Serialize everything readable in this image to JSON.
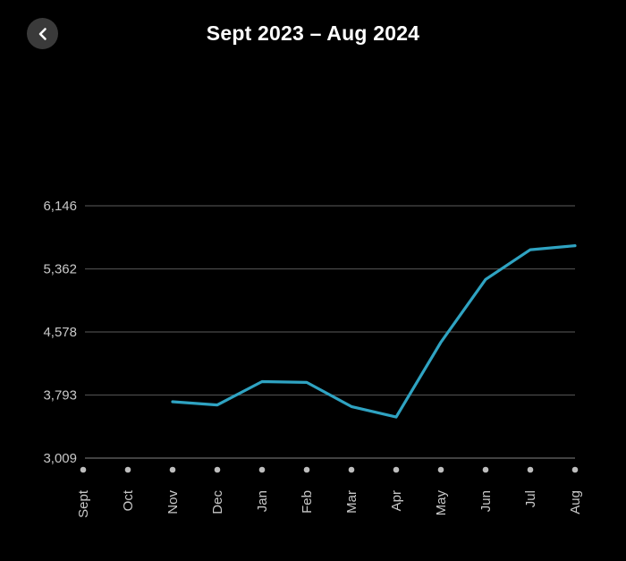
{
  "header": {
    "title": "Sept 2023 – Aug 2024",
    "back_icon": "chevron-left-icon"
  },
  "colors": {
    "background": "#000000",
    "line": "#2fa3c2",
    "grid": "#4a4a4a",
    "tick_text": "#c8c8c8",
    "dot": "#bdbdbd"
  },
  "chart_data": {
    "type": "line",
    "title": "Sept 2023 – Aug 2024",
    "xlabel": "",
    "ylabel": "",
    "categories": [
      "Sept",
      "Oct",
      "Nov",
      "Dec",
      "Jan",
      "Feb",
      "Mar",
      "Apr",
      "May",
      "Jun",
      "Jul",
      "Aug"
    ],
    "yticks": [
      "3,009",
      "3,793",
      "4,578",
      "5,362",
      "6,146"
    ],
    "ylim": [
      3009,
      6146
    ],
    "grid": true,
    "legend": "none",
    "series": [
      {
        "values": [
          null,
          null,
          3710,
          3670,
          3960,
          3950,
          3650,
          3520,
          4450,
          5230,
          5600,
          5650
        ]
      }
    ]
  }
}
